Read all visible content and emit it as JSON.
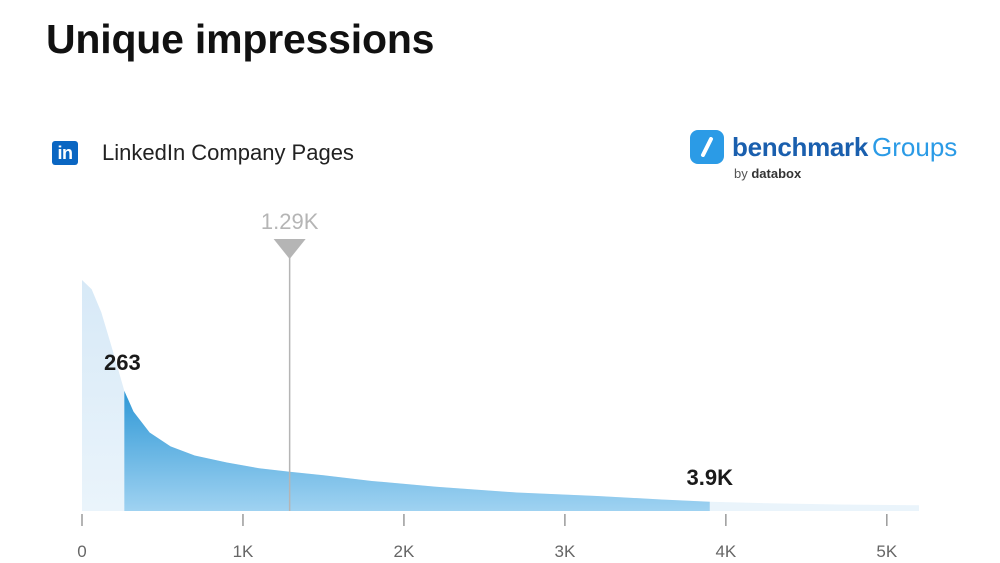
{
  "header": {
    "title": "Unique impressions"
  },
  "source": {
    "label": "LinkedIn Company Pages",
    "logo_text": "in"
  },
  "brand": {
    "main": "benchmark",
    "sub": "Groups",
    "by": "by",
    "by_name": "databox"
  },
  "chart_data": {
    "type": "area",
    "title": "",
    "xlabel": "",
    "ylabel": "",
    "xlim": [
      0,
      5200
    ],
    "x_ticks": [
      0,
      1000,
      2000,
      3000,
      4000,
      5000
    ],
    "x_tick_labels": [
      "0",
      "1K",
      "2K",
      "3K",
      "4K",
      "5K"
    ],
    "density_curve": {
      "x": [
        0,
        60,
        120,
        180,
        230,
        263,
        320,
        420,
        550,
        700,
        900,
        1100,
        1290,
        1500,
        1800,
        2200,
        2700,
        3200,
        3600,
        3900,
        4300,
        4700,
        5200
      ],
      "y": [
        1.0,
        0.96,
        0.86,
        0.72,
        0.6,
        0.52,
        0.43,
        0.34,
        0.28,
        0.24,
        0.21,
        0.185,
        0.17,
        0.155,
        0.13,
        0.105,
        0.08,
        0.065,
        0.05,
        0.04,
        0.033,
        0.028,
        0.025
      ]
    },
    "highlight_range": {
      "from": 263,
      "to": 3900
    },
    "lower_label": "263",
    "upper_label": "3.9K",
    "median": {
      "value": 1290,
      "label": "1.29K"
    },
    "colors": {
      "light": "#dcecf8",
      "dark": "#3aa3dc",
      "dark_fade": "#a8d7f2",
      "marker": "#b5b5b5",
      "axis": "#9a9a9a"
    }
  }
}
